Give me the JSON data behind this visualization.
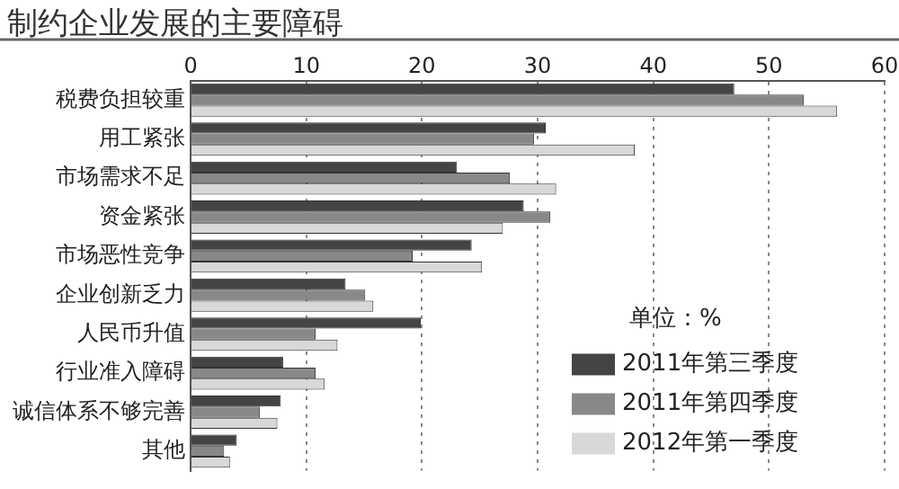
{
  "chart_data": {
    "type": "bar",
    "orientation": "horizontal",
    "title": "制约企业发展的主要障碍",
    "categories": [
      "税费负担较重",
      "用工紧张",
      "市场需求不足",
      "资金紧张",
      "市场恶性竞争",
      "企业创新乏力",
      "人民币升值",
      "行业准入障碍",
      "诚信体系不够完善",
      "其他"
    ],
    "series": [
      {
        "name": "2011年第三季度",
        "color": "#444444",
        "values": [
          47,
          30.7,
          23,
          28.8,
          24.3,
          13.4,
          19.9,
          8,
          7.8,
          4
        ]
      },
      {
        "name": "2011年第四季度",
        "color": "#888888",
        "values": [
          53,
          29.7,
          27.6,
          31.1,
          19.2,
          15.1,
          10.8,
          10.8,
          6,
          2.9
        ]
      },
      {
        "name": "2012年第一季度",
        "color": "#d8d8d8",
        "values": [
          55.9,
          38.4,
          31.6,
          27,
          25.2,
          15.8,
          12.7,
          11.6,
          7.5,
          3.4
        ]
      }
    ],
    "xlim": [
      0,
      60
    ],
    "xticks": [
      0,
      10,
      20,
      30,
      40,
      50,
      60
    ],
    "grid": "x",
    "legend": "bottom right",
    "annotations": [
      "单位：%"
    ]
  }
}
